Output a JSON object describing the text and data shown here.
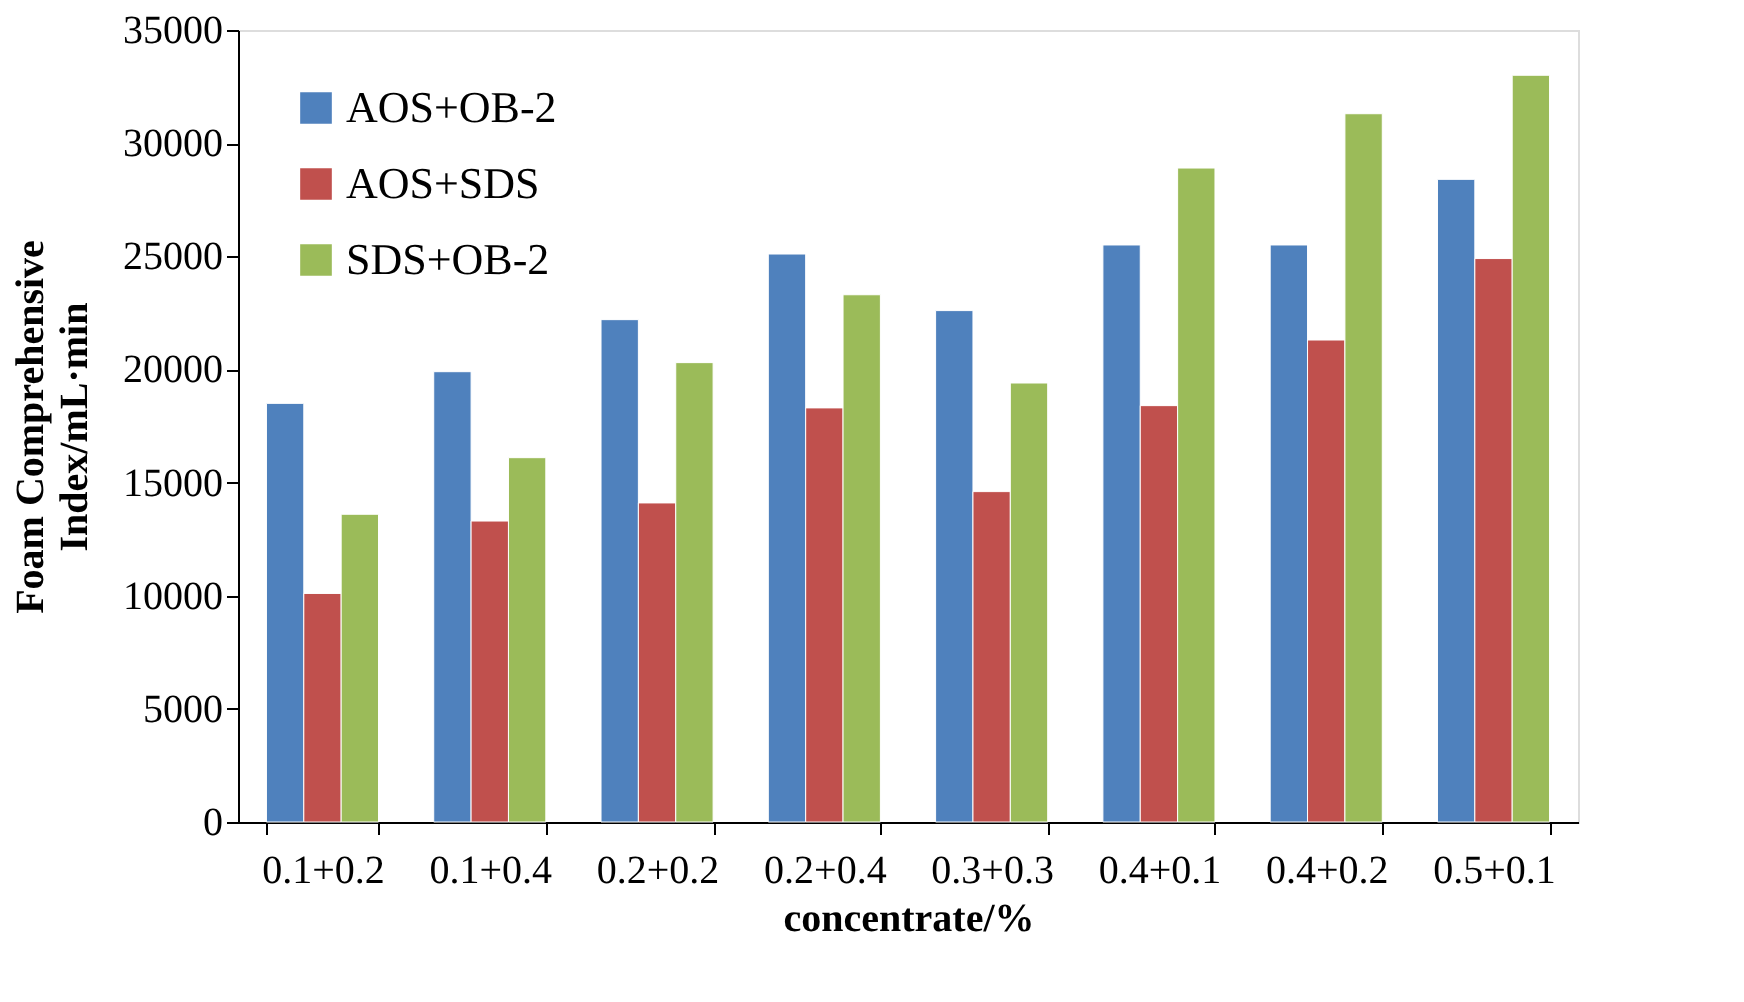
{
  "chart_data": {
    "type": "bar",
    "xlabel": "concentrate/%",
    "ylabel": "Foam Comprehensive\nIndex/mL·min",
    "categories": [
      "0.1+0.2",
      "0.1+0.4",
      "0.2+0.2",
      "0.2+0.4",
      "0.3+0.3",
      "0.4+0.1",
      "0.4+0.2",
      "0.5+0.1"
    ],
    "series": [
      {
        "name": "AOS+OB-2",
        "color": "#4f81bd",
        "values": [
          18500,
          19900,
          22200,
          25100,
          22600,
          25500,
          25500,
          28400
        ]
      },
      {
        "name": "AOS+SDS",
        "color": "#c0504d",
        "values": [
          10100,
          13300,
          14100,
          18300,
          14600,
          18400,
          21300,
          24900
        ]
      },
      {
        "name": "SDS+OB-2",
        "color": "#9bbb59",
        "values": [
          13600,
          16100,
          20300,
          23300,
          19400,
          28900,
          31300,
          33000
        ]
      }
    ],
    "ylim": [
      0,
      35000
    ],
    "yticks": [
      0,
      5000,
      10000,
      15000,
      20000,
      25000,
      30000,
      35000
    ],
    "grid": false,
    "legend": "top left"
  }
}
